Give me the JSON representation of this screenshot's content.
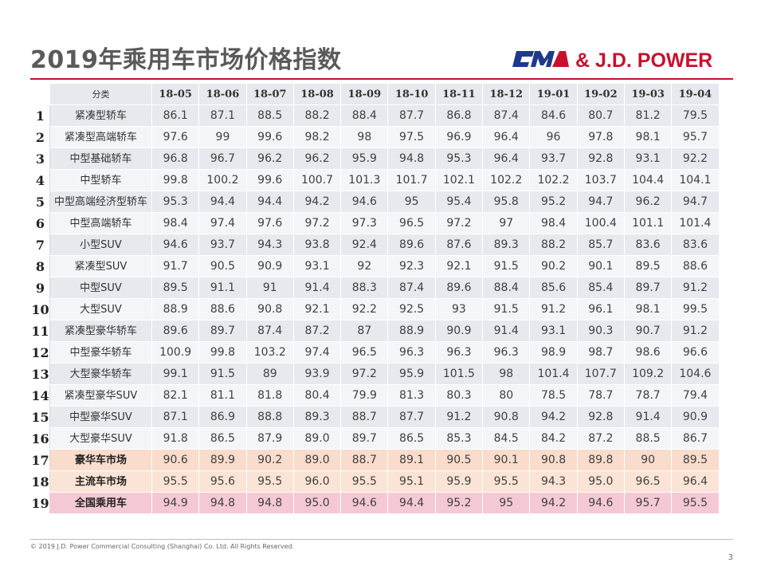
{
  "title": "2019年乘用车市场价格指数",
  "logo": {
    "text": "& J.D. POWER",
    "brand_color": "#1f3a8a",
    "accent_color": "#c8102e"
  },
  "table": {
    "header": [
      "分类",
      "18-05",
      "18-06",
      "18-07",
      "18-08",
      "18-09",
      "18-10",
      "18-11",
      "18-12",
      "19-01",
      "19-02",
      "19-03",
      "19-04"
    ],
    "rows": [
      {
        "idx": "1",
        "name": "紧凑型轿车",
        "style": "odd",
        "values": [
          "86.1",
          "87.1",
          "88.5",
          "88.2",
          "88.4",
          "87.7",
          "86.8",
          "87.4",
          "84.6",
          "80.7",
          "81.2",
          "79.5"
        ]
      },
      {
        "idx": "2",
        "name": "紧凑型高端轿车",
        "style": "even",
        "values": [
          "97.6",
          "99",
          "99.6",
          "98.2",
          "98",
          "97.5",
          "96.9",
          "96.4",
          "96",
          "97.8",
          "98.1",
          "95.7"
        ]
      },
      {
        "idx": "3",
        "name": "中型基础轿车",
        "style": "odd",
        "values": [
          "96.8",
          "96.7",
          "96.2",
          "96.2",
          "95.9",
          "94.8",
          "95.3",
          "96.4",
          "93.7",
          "92.8",
          "93.1",
          "92.2"
        ]
      },
      {
        "idx": "4",
        "name": "中型轿车",
        "style": "even",
        "values": [
          "99.8",
          "100.2",
          "99.6",
          "100.7",
          "101.3",
          "101.7",
          "102.1",
          "102.2",
          "102.2",
          "103.7",
          "104.4",
          "104.1"
        ]
      },
      {
        "idx": "5",
        "name": "中型高端经济型轿车",
        "style": "odd",
        "values": [
          "95.3",
          "94.4",
          "94.4",
          "94.2",
          "94.6",
          "95",
          "95.4",
          "95.8",
          "95.2",
          "94.7",
          "96.2",
          "94.7"
        ]
      },
      {
        "idx": "6",
        "name": "中型高端轿车",
        "style": "even",
        "values": [
          "98.4",
          "97.4",
          "97.6",
          "97.2",
          "97.3",
          "96.5",
          "97.2",
          "97",
          "98.4",
          "100.4",
          "101.1",
          "101.4"
        ]
      },
      {
        "idx": "7",
        "name": "小型SUV",
        "style": "odd",
        "values": [
          "94.6",
          "93.7",
          "94.3",
          "93.8",
          "92.4",
          "89.6",
          "87.6",
          "89.3",
          "88.2",
          "85.7",
          "83.6",
          "83.6"
        ]
      },
      {
        "idx": "8",
        "name": "紧凑型SUV",
        "style": "even",
        "values": [
          "91.7",
          "90.5",
          "90.9",
          "93.1",
          "92",
          "92.3",
          "92.1",
          "91.5",
          "90.2",
          "90.1",
          "89.5",
          "88.6"
        ]
      },
      {
        "idx": "9",
        "name": "中型SUV",
        "style": "odd",
        "values": [
          "89.5",
          "91.1",
          "91",
          "91.4",
          "88.3",
          "87.4",
          "89.6",
          "88.4",
          "85.6",
          "85.4",
          "89.7",
          "91.2"
        ]
      },
      {
        "idx": "10",
        "name": "大型SUV",
        "style": "even",
        "values": [
          "88.9",
          "88.6",
          "90.8",
          "92.1",
          "92.2",
          "92.5",
          "93",
          "91.5",
          "91.2",
          "96.1",
          "98.1",
          "99.5"
        ]
      },
      {
        "idx": "11",
        "name": "紧凑型豪华轿车",
        "style": "odd",
        "values": [
          "89.6",
          "89.7",
          "87.4",
          "87.2",
          "87",
          "88.9",
          "90.9",
          "91.4",
          "93.1",
          "90.3",
          "90.7",
          "91.2"
        ]
      },
      {
        "idx": "12",
        "name": "中型豪华轿车",
        "style": "even",
        "values": [
          "100.9",
          "99.8",
          "103.2",
          "97.4",
          "96.5",
          "96.3",
          "96.3",
          "96.3",
          "98.9",
          "98.7",
          "98.6",
          "96.6"
        ]
      },
      {
        "idx": "13",
        "name": "大型豪华轿车",
        "style": "odd",
        "values": [
          "99.1",
          "91.5",
          "89",
          "93.9",
          "97.2",
          "95.9",
          "101.5",
          "98",
          "101.4",
          "107.7",
          "109.2",
          "104.6"
        ]
      },
      {
        "idx": "14",
        "name": "紧凑型豪华SUV",
        "style": "even",
        "values": [
          "82.1",
          "81.1",
          "81.8",
          "80.4",
          "79.9",
          "81.3",
          "80.3",
          "80",
          "78.5",
          "78.7",
          "78.7",
          "79.4"
        ]
      },
      {
        "idx": "15",
        "name": "中型豪华SUV",
        "style": "odd",
        "values": [
          "87.1",
          "86.9",
          "88.8",
          "89.3",
          "88.7",
          "87.7",
          "91.2",
          "90.8",
          "94.2",
          "92.8",
          "91.4",
          "90.9"
        ]
      },
      {
        "idx": "16",
        "name": "大型豪华SUV",
        "style": "even",
        "values": [
          "91.8",
          "86.5",
          "87.9",
          "89.0",
          "89.7",
          "86.5",
          "85.3",
          "84.5",
          "84.2",
          "87.2",
          "88.5",
          "86.7"
        ]
      },
      {
        "idx": "17",
        "name": "豪华车市场",
        "style": "lux",
        "values": [
          "90.6",
          "89.9",
          "90.2",
          "89.0",
          "88.7",
          "89.1",
          "90.5",
          "90.1",
          "90.8",
          "89.8",
          "90",
          "89.5"
        ]
      },
      {
        "idx": "18",
        "name": "主流车市场",
        "style": "main",
        "values": [
          "95.5",
          "95.6",
          "95.5",
          "96.0",
          "95.5",
          "95.1",
          "95.9",
          "95.5",
          "94.3",
          "95.0",
          "96.5",
          "96.4"
        ]
      },
      {
        "idx": "19",
        "name": "全国乘用车",
        "style": "all",
        "values": [
          "94.9",
          "94.8",
          "94.8",
          "95.0",
          "94.6",
          "94.4",
          "95.2",
          "95",
          "94.2",
          "94.6",
          "95.7",
          "95.5"
        ]
      }
    ]
  },
  "footer": "© 2019 J.D. Power Commercial Consulting (Shanghai) Co. Ltd. All Rights Reserved.",
  "page_number": "3"
}
